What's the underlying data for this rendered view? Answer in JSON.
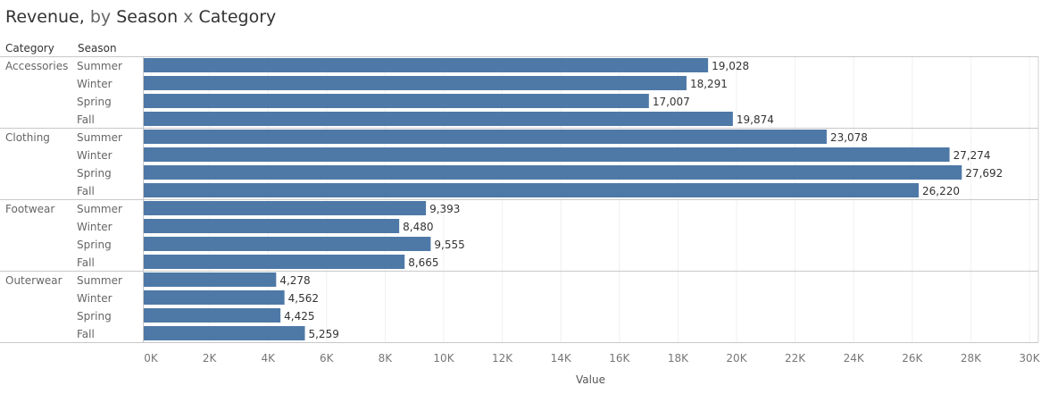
{
  "title": {
    "part1": "Revenue,",
    "part2": " by ",
    "part3": "Season",
    "part4": " x ",
    "part5": "Category"
  },
  "headers": {
    "category": "Category",
    "season": "Season"
  },
  "chart_data": {
    "type": "bar",
    "orientation": "horizontal",
    "title": "Revenue, by Season x Category",
    "xlabel": "Value",
    "ylabel": "",
    "xlim": [
      0,
      30000
    ],
    "ticks": [
      0,
      2000,
      4000,
      6000,
      8000,
      10000,
      12000,
      14000,
      16000,
      18000,
      20000,
      22000,
      24000,
      26000,
      28000,
      30000
    ],
    "tick_labels": [
      "0K",
      "2K",
      "4K",
      "6K",
      "8K",
      "10K",
      "12K",
      "14K",
      "16K",
      "18K",
      "20K",
      "22K",
      "24K",
      "26K",
      "28K",
      "30K"
    ],
    "grid": true,
    "bar_color": "#4e79a7",
    "groups": [
      {
        "category": "Accessories",
        "rows": [
          {
            "season": "Summer",
            "value": 19028,
            "label": "19,028"
          },
          {
            "season": "Winter",
            "value": 18291,
            "label": "18,291"
          },
          {
            "season": "Spring",
            "value": 17007,
            "label": "17,007"
          },
          {
            "season": "Fall",
            "value": 19874,
            "label": "19,874"
          }
        ]
      },
      {
        "category": "Clothing",
        "rows": [
          {
            "season": "Summer",
            "value": 23078,
            "label": "23,078"
          },
          {
            "season": "Winter",
            "value": 27274,
            "label": "27,274"
          },
          {
            "season": "Spring",
            "value": 27692,
            "label": "27,692"
          },
          {
            "season": "Fall",
            "value": 26220,
            "label": "26,220"
          }
        ]
      },
      {
        "category": "Footwear",
        "rows": [
          {
            "season": "Summer",
            "value": 9393,
            "label": "9,393"
          },
          {
            "season": "Winter",
            "value": 8480,
            "label": "8,480"
          },
          {
            "season": "Spring",
            "value": 9555,
            "label": "9,555"
          },
          {
            "season": "Fall",
            "value": 8665,
            "label": "8,665"
          }
        ]
      },
      {
        "category": "Outerwear",
        "rows": [
          {
            "season": "Summer",
            "value": 4278,
            "label": "4,278"
          },
          {
            "season": "Winter",
            "value": 4562,
            "label": "4,562"
          },
          {
            "season": "Spring",
            "value": 4425,
            "label": "4,425"
          },
          {
            "season": "Fall",
            "value": 5259,
            "label": "5,259"
          }
        ]
      }
    ]
  }
}
